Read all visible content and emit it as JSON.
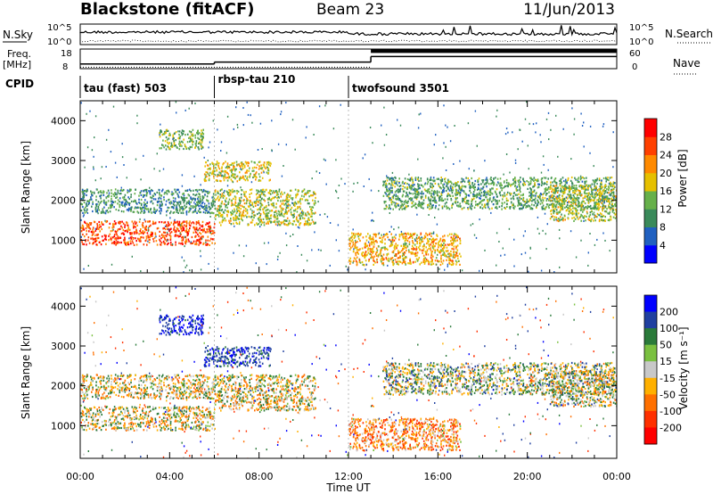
{
  "header": {
    "station": "Blackstone (fitACF)",
    "beam": "Beam 23",
    "date": "11/Jun/2013"
  },
  "panel_labels": {
    "nsky": "N.Sky",
    "nsearch": "N.Search",
    "freq_top": "Freq.",
    "freq_unit": "[MHz]",
    "nave": "Nave",
    "cpid": "CPID",
    "nsky_ticks": [
      "10^5",
      "10^0"
    ],
    "nsearch_ticks": [
      "10^5",
      "10^0"
    ],
    "freq_ticks": [
      "18",
      "8"
    ],
    "nave_ticks": [
      "60",
      "0"
    ]
  },
  "cpid_segments": [
    {
      "label": "tau (fast) 503",
      "start_hr": 0
    },
    {
      "label": "rbsp-tau 210",
      "start_hr": 6
    },
    {
      "label": "twofsound 3501",
      "start_hr": 12
    }
  ],
  "x_axis": {
    "label": "Time UT",
    "ticks": [
      "00:00",
      "04:00",
      "08:00",
      "12:00",
      "16:00",
      "20:00",
      "00:00"
    ],
    "range_hr": [
      0,
      24
    ]
  },
  "y_axis": {
    "label": "Slant Range [km]",
    "ticks": [
      "1000",
      "2000",
      "3000",
      "4000"
    ],
    "range_km": [
      180,
      4500
    ]
  },
  "power_scale": {
    "label": "Power [dB]",
    "ticks": [
      "4",
      "8",
      "12",
      "16",
      "20",
      "24",
      "28"
    ],
    "colors": [
      "#0000ff",
      "#2060c0",
      "#3a8a5a",
      "#66b04a",
      "#e6c000",
      "#ff8a00",
      "#ff4000",
      "#ff0000"
    ]
  },
  "velocity_scale": {
    "label": "Velocity [m s⁻¹]",
    "ticks": [
      "200",
      "100",
      "50",
      "15",
      "-15",
      "-50",
      "-100",
      "-200"
    ],
    "colors": [
      "#0000ff",
      "#2040a0",
      "#2a7a3a",
      "#7ac040",
      "#c8c8c8",
      "#ffb000",
      "#ff7000",
      "#ff3000",
      "#ff0000"
    ]
  },
  "chart_data": {
    "type": "heatmap",
    "title": "Blackstone (fitACF)  Beam 23  11/Jun/2013",
    "xlabel": "Time UT",
    "ylabel": "Slant Range [km]",
    "xlim_hr": [
      0,
      24
    ],
    "ylim_km": [
      180,
      4500
    ],
    "echo_regions": [
      {
        "t0": 0.0,
        "t1": 6.0,
        "r0_km": 900,
        "r1_km": 1500,
        "power_db": 26,
        "velocity_ms": -10
      },
      {
        "t0": 6.0,
        "t1": 10.5,
        "r0_km": 1400,
        "r1_km": 2300,
        "power_db": 16,
        "velocity_ms": -10
      },
      {
        "t0": 3.5,
        "t1": 5.5,
        "r0_km": 3300,
        "r1_km": 3800,
        "power_db": 14,
        "velocity_ms": 150
      },
      {
        "t0": 5.5,
        "t1": 8.5,
        "r0_km": 2500,
        "r1_km": 3000,
        "power_db": 18,
        "velocity_ms": 120
      },
      {
        "t0": 0.0,
        "t1": 6.0,
        "r0_km": 1700,
        "r1_km": 2300,
        "power_db": 10,
        "velocity_ms": -10
      },
      {
        "t0": 12.0,
        "t1": 17.0,
        "r0_km": 400,
        "r1_km": 1200,
        "power_db": 20,
        "velocity_ms": -60
      },
      {
        "t0": 13.5,
        "t1": 24.0,
        "r0_km": 1800,
        "r1_km": 2600,
        "power_db": 12,
        "velocity_ms": 20
      },
      {
        "t0": 21.0,
        "t1": 24.0,
        "r0_km": 1500,
        "r1_km": 2400,
        "power_db": 16,
        "velocity_ms": 0
      }
    ],
    "cpid_changes_hr": [
      6,
      12
    ],
    "frequency_mhz": [
      {
        "t0": 0,
        "t1": 6,
        "value": 10.5
      },
      {
        "t0": 6,
        "t1": 13,
        "value": 11.5
      },
      {
        "t0": 13,
        "t1": 24,
        "value": 14.5
      }
    ],
    "nave": [
      {
        "t0": 0,
        "t1": 13,
        "value": 2
      },
      {
        "t0": 13,
        "t1": 24,
        "value": 56
      }
    ]
  }
}
